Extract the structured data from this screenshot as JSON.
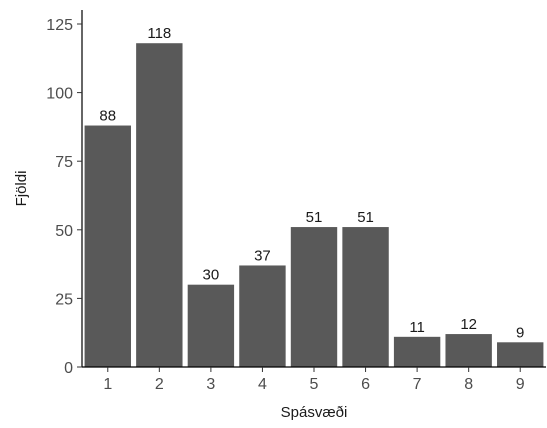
{
  "chart_data": {
    "type": "bar",
    "xlabel": "Spásvæði",
    "ylabel": "Fjöldi",
    "categories": [
      "1",
      "2",
      "3",
      "4",
      "5",
      "6",
      "7",
      "8",
      "9"
    ],
    "values": [
      88,
      118,
      30,
      37,
      51,
      51,
      11,
      12,
      9
    ],
    "data_labels": [
      "88",
      "118",
      "30",
      "37",
      "51",
      "51",
      "11",
      "12",
      "9"
    ],
    "ylim": [
      0,
      125
    ],
    "yticks": [
      0,
      25,
      50,
      75,
      100,
      125
    ],
    "ytick_labels": [
      "0",
      "25",
      "50",
      "75",
      "100",
      "125"
    ],
    "grid": false,
    "legend": "none",
    "bar_color": "#595959",
    "axis_color": "#000000"
  }
}
